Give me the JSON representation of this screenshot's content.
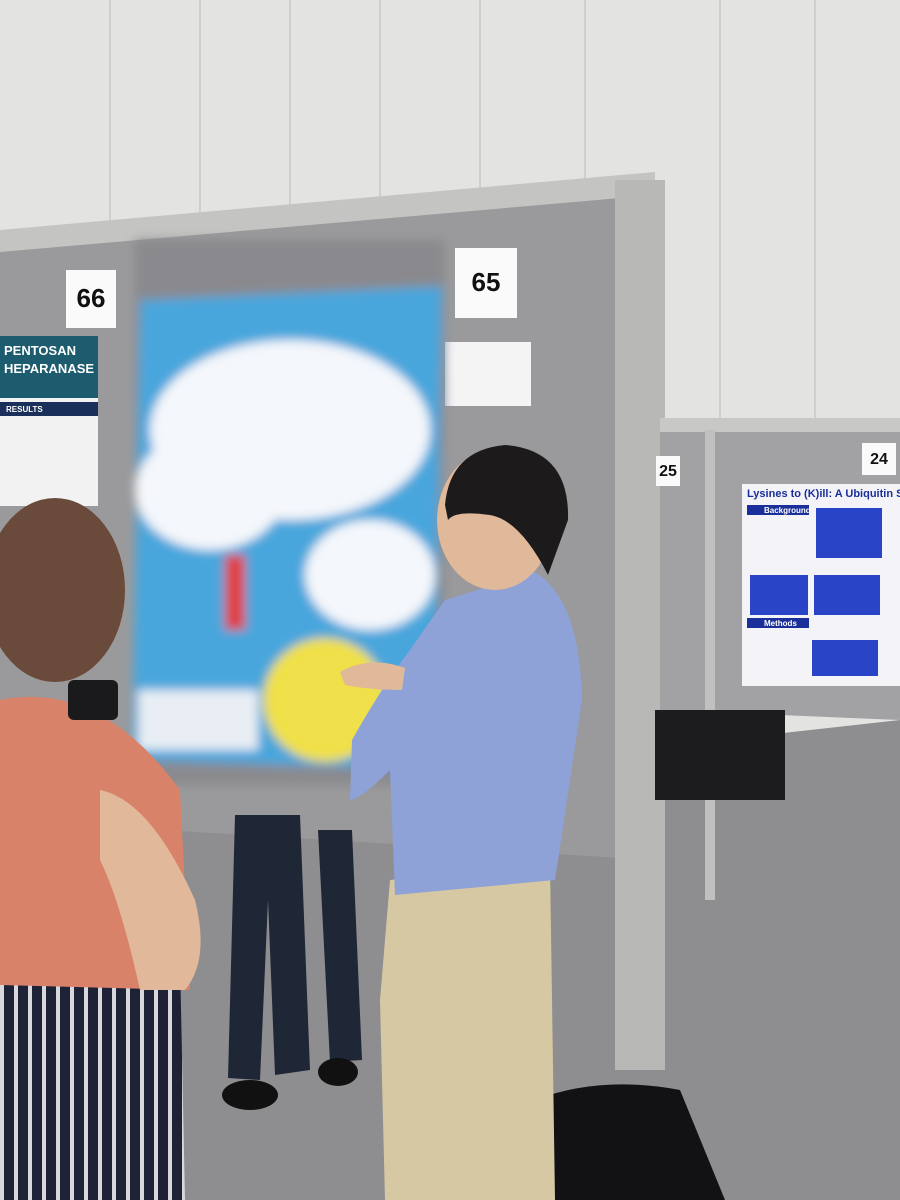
{
  "scene": {
    "board_numbers": [
      "66",
      "65",
      "25",
      "24"
    ],
    "left_poster": {
      "title_lines": [
        "PENTOSAN",
        "HEPARANASE"
      ],
      "section": "RESULTS"
    },
    "right_poster": {
      "title": "Lysines to (K)ill: A Ubiquitin Sto",
      "sections": [
        "Background",
        "Methods"
      ]
    }
  }
}
